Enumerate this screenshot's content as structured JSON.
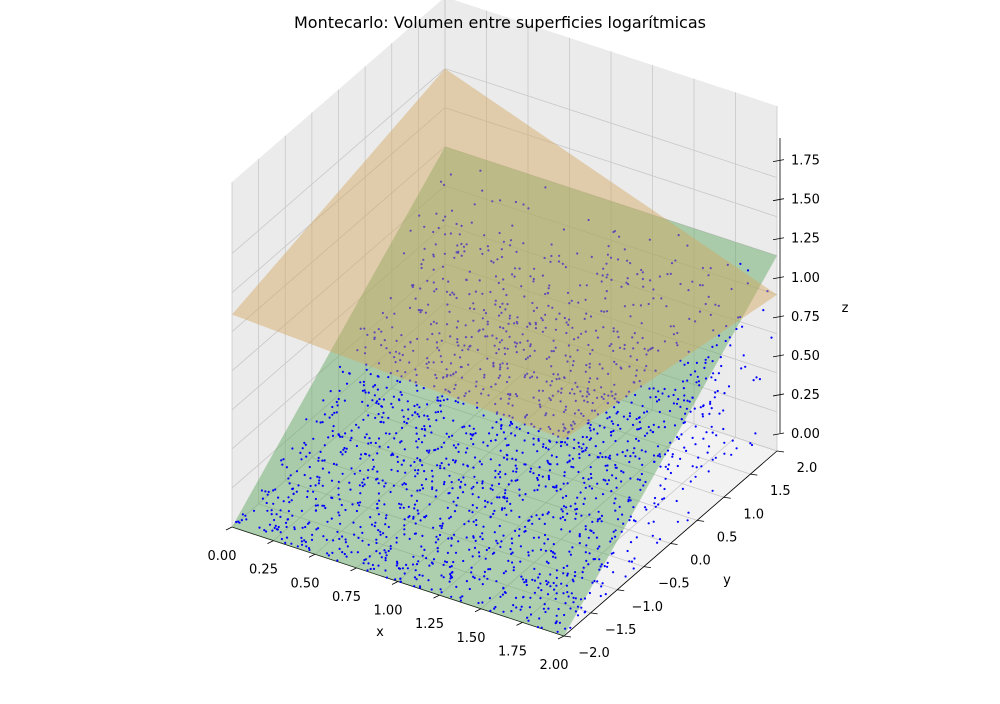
{
  "chart_data": {
    "type": "scatter",
    "projection": "3d",
    "title": "Montecarlo: Volumen entre superficies logarítmicas",
    "xlabel": "x",
    "ylabel": "y",
    "zlabel": "z",
    "xlim": [
      0,
      2
    ],
    "ylim": [
      -2,
      2
    ],
    "zlim": [
      0,
      1.85
    ],
    "x_ticks": [
      "0.00",
      "0.25",
      "0.50",
      "0.75",
      "1.00",
      "1.25",
      "1.50",
      "1.75",
      "2.00"
    ],
    "y_ticks": [
      "−2.0",
      "−1.5",
      "−1.0",
      "−0.5",
      "0.0",
      "0.5",
      "1.0",
      "1.5",
      "2.0"
    ],
    "z_ticks": [
      "0.00",
      "0.25",
      "0.50",
      "0.75",
      "1.00",
      "1.25",
      "1.50",
      "1.75"
    ],
    "grid": true,
    "series": [
      {
        "kind": "surface",
        "color": "#d2a75d",
        "alpha": 0.45,
        "corners": [
          {
            "x": 0,
            "y": -2,
            "z": 1.36
          },
          {
            "x": 2,
            "y": -2,
            "z": 1.26
          },
          {
            "x": 2,
            "y": 2,
            "z": 1.0
          },
          {
            "x": 0,
            "y": 2,
            "z": 1.75
          }
        ]
      },
      {
        "kind": "surface",
        "color": "#5aa55a",
        "alpha": 0.45,
        "corners": [
          {
            "x": 0,
            "y": -2,
            "z": 0.0
          },
          {
            "x": 2,
            "y": -2,
            "z": 0.0
          },
          {
            "x": 2,
            "y": 2,
            "z": 1.25
          },
          {
            "x": 0,
            "y": 2,
            "z": 1.25
          }
        ]
      },
      {
        "kind": "points",
        "color": "#0000ff",
        "count": 2000,
        "distribution": "uniform in x∈[0,2], y∈[-2,2], 0 ≤ z ≤ lower surface"
      }
    ]
  }
}
